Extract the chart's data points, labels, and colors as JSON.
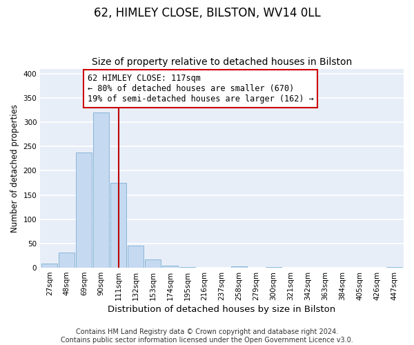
{
  "title": "62, HIMLEY CLOSE, BILSTON, WV14 0LL",
  "subtitle": "Size of property relative to detached houses in Bilston",
  "xlabel": "Distribution of detached houses by size in Bilston",
  "ylabel": "Number of detached properties",
  "bin_labels": [
    "27sqm",
    "48sqm",
    "69sqm",
    "90sqm",
    "111sqm",
    "132sqm",
    "153sqm",
    "174sqm",
    "195sqm",
    "216sqm",
    "237sqm",
    "258sqm",
    "279sqm",
    "300sqm",
    "321sqm",
    "342sqm",
    "363sqm",
    "384sqm",
    "405sqm",
    "426sqm",
    "447sqm"
  ],
  "bar_values": [
    8,
    32,
    238,
    320,
    175,
    45,
    17,
    5,
    1,
    0,
    0,
    3,
    0,
    1,
    0,
    0,
    0,
    0,
    0,
    0,
    2
  ],
  "bar_color": "#c5d9f0",
  "bar_edgecolor": "#7bafd4",
  "vline_x_index": 4.0,
  "vline_color": "#bb0000",
  "annotation_line1": "62 HIMLEY CLOSE: 117sqm",
  "annotation_line2": "← 80% of detached houses are smaller (670)",
  "annotation_line3": "19% of semi-detached houses are larger (162) →",
  "annotation_box_edgecolor": "#cc0000",
  "annotation_box_facecolor": "#ffffff",
  "ylim": [
    0,
    410
  ],
  "yticks": [
    0,
    50,
    100,
    150,
    200,
    250,
    300,
    350,
    400
  ],
  "footer_line1": "Contains HM Land Registry data © Crown copyright and database right 2024.",
  "footer_line2": "Contains public sector information licensed under the Open Government Licence v3.0.",
  "fig_facecolor": "#ffffff",
  "plot_facecolor": "#e8eef8",
  "grid_color": "#ffffff",
  "title_fontsize": 12,
  "subtitle_fontsize": 10,
  "xlabel_fontsize": 9.5,
  "ylabel_fontsize": 8.5,
  "tick_fontsize": 7.5,
  "footer_fontsize": 7,
  "annotation_fontsize": 8.5
}
